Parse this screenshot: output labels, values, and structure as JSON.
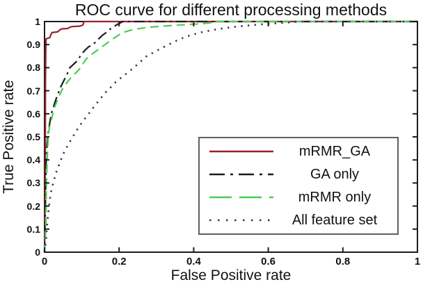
{
  "chart_data": {
    "type": "line",
    "title": "ROC curve for different processing methods",
    "xlabel": "False Positive rate",
    "ylabel": "True Positive rate",
    "xlim": [
      0,
      1
    ],
    "ylim": [
      0,
      1
    ],
    "grid": false,
    "legend_position": "inside lower-right",
    "axis_color": "#1b1b1b",
    "background_color": "#ffffff",
    "x_tick_values": [
      0,
      0.2,
      0.4,
      0.6,
      0.8,
      1
    ],
    "x_tick_labels": [
      "0",
      "0.2",
      "0.4",
      "0.6",
      "0.8",
      "1"
    ],
    "y_tick_values": [
      0,
      0.1,
      0.2,
      0.3,
      0.4,
      0.5,
      0.6,
      0.7,
      0.8,
      0.9,
      1
    ],
    "y_tick_labels": [
      "0",
      "0.1",
      "0.2",
      "0.3",
      "0.4",
      "0.5",
      "0.6",
      "0.7",
      "0.8",
      "0.9",
      "1"
    ],
    "series": [
      {
        "name": "mRMR_GA",
        "color": "#96202f",
        "line_style": "solid",
        "points": [
          [
            0,
            0
          ],
          [
            0.002,
            0.4
          ],
          [
            0.0025,
            0.72
          ],
          [
            0.003,
            0.82
          ],
          [
            0.0035,
            0.9
          ],
          [
            0.004,
            0.925
          ],
          [
            0.014,
            0.93
          ],
          [
            0.017,
            0.943
          ],
          [
            0.02,
            0.952
          ],
          [
            0.035,
            0.955
          ],
          [
            0.04,
            0.962
          ],
          [
            0.045,
            0.968
          ],
          [
            0.062,
            0.97
          ],
          [
            0.068,
            0.975
          ],
          [
            0.073,
            0.978
          ],
          [
            0.095,
            0.98
          ],
          [
            0.103,
            0.985
          ],
          [
            0.106,
            1
          ],
          [
            1,
            1
          ]
        ]
      },
      {
        "name": "GA only",
        "color": "#1b1b1b",
        "line_style": "dashdot",
        "points": [
          [
            0,
            0
          ],
          [
            0.002,
            0.17
          ],
          [
            0.003,
            0.27
          ],
          [
            0.0035,
            0.31
          ],
          [
            0.004,
            0.36
          ],
          [
            0.005,
            0.43
          ],
          [
            0.007,
            0.47
          ],
          [
            0.01,
            0.52
          ],
          [
            0.014,
            0.56
          ],
          [
            0.018,
            0.6
          ],
          [
            0.024,
            0.63
          ],
          [
            0.03,
            0.66
          ],
          [
            0.037,
            0.69
          ],
          [
            0.043,
            0.715
          ],
          [
            0.052,
            0.745
          ],
          [
            0.06,
            0.77
          ],
          [
            0.068,
            0.8
          ],
          [
            0.078,
            0.815
          ],
          [
            0.088,
            0.83
          ],
          [
            0.098,
            0.855
          ],
          [
            0.108,
            0.875
          ],
          [
            0.118,
            0.89
          ],
          [
            0.13,
            0.9
          ],
          [
            0.142,
            0.92
          ],
          [
            0.155,
            0.94
          ],
          [
            0.168,
            0.955
          ],
          [
            0.178,
            0.97
          ],
          [
            0.188,
            0.98
          ],
          [
            0.198,
            0.99
          ],
          [
            0.21,
            1
          ],
          [
            1,
            1
          ]
        ]
      },
      {
        "name": "mRMR only",
        "color": "#4ecb54",
        "line_style": "dashed",
        "points": [
          [
            0,
            0
          ],
          [
            0.003,
            0.09
          ],
          [
            0.004,
            0.17
          ],
          [
            0.005,
            0.3
          ],
          [
            0.007,
            0.4
          ],
          [
            0.009,
            0.47
          ],
          [
            0.011,
            0.52
          ],
          [
            0.015,
            0.555
          ],
          [
            0.02,
            0.585
          ],
          [
            0.026,
            0.625
          ],
          [
            0.031,
            0.645
          ],
          [
            0.04,
            0.68
          ],
          [
            0.05,
            0.715
          ],
          [
            0.06,
            0.735
          ],
          [
            0.07,
            0.755
          ],
          [
            0.082,
            0.775
          ],
          [
            0.092,
            0.79
          ],
          [
            0.102,
            0.815
          ],
          [
            0.112,
            0.838
          ],
          [
            0.122,
            0.852
          ],
          [
            0.135,
            0.868
          ],
          [
            0.15,
            0.885
          ],
          [
            0.162,
            0.9
          ],
          [
            0.175,
            0.915
          ],
          [
            0.19,
            0.932
          ],
          [
            0.202,
            0.945
          ],
          [
            0.216,
            0.955
          ],
          [
            0.232,
            0.963
          ],
          [
            0.252,
            0.969
          ],
          [
            0.275,
            0.974
          ],
          [
            0.305,
            0.979
          ],
          [
            0.345,
            0.983
          ],
          [
            0.385,
            0.987
          ],
          [
            0.425,
            0.991
          ],
          [
            0.452,
            0.996
          ],
          [
            0.462,
            1
          ],
          [
            1,
            1
          ]
        ]
      },
      {
        "name": "All feature set",
        "color": "#2e2e5e",
        "line_style": "dotted",
        "points": [
          [
            0,
            0
          ],
          [
            0.004,
            0.05
          ],
          [
            0.006,
            0.1
          ],
          [
            0.008,
            0.14
          ],
          [
            0.01,
            0.17
          ],
          [
            0.013,
            0.21
          ],
          [
            0.016,
            0.25
          ],
          [
            0.02,
            0.28
          ],
          [
            0.025,
            0.31
          ],
          [
            0.031,
            0.345
          ],
          [
            0.038,
            0.375
          ],
          [
            0.045,
            0.405
          ],
          [
            0.052,
            0.432
          ],
          [
            0.062,
            0.462
          ],
          [
            0.072,
            0.49
          ],
          [
            0.083,
            0.52
          ],
          [
            0.095,
            0.55
          ],
          [
            0.107,
            0.577
          ],
          [
            0.12,
            0.603
          ],
          [
            0.135,
            0.636
          ],
          [
            0.15,
            0.665
          ],
          [
            0.162,
            0.69
          ],
          [
            0.176,
            0.712
          ],
          [
            0.19,
            0.736
          ],
          [
            0.206,
            0.757
          ],
          [
            0.226,
            0.782
          ],
          [
            0.25,
            0.815
          ],
          [
            0.272,
            0.848
          ],
          [
            0.3,
            0.873
          ],
          [
            0.33,
            0.898
          ],
          [
            0.36,
            0.922
          ],
          [
            0.39,
            0.94
          ],
          [
            0.42,
            0.953
          ],
          [
            0.45,
            0.963
          ],
          [
            0.485,
            0.972
          ],
          [
            0.52,
            0.979
          ],
          [
            0.56,
            0.985
          ],
          [
            0.6,
            0.99
          ],
          [
            0.645,
            0.995
          ],
          [
            0.685,
            1
          ],
          [
            1,
            1
          ]
        ]
      }
    ]
  }
}
